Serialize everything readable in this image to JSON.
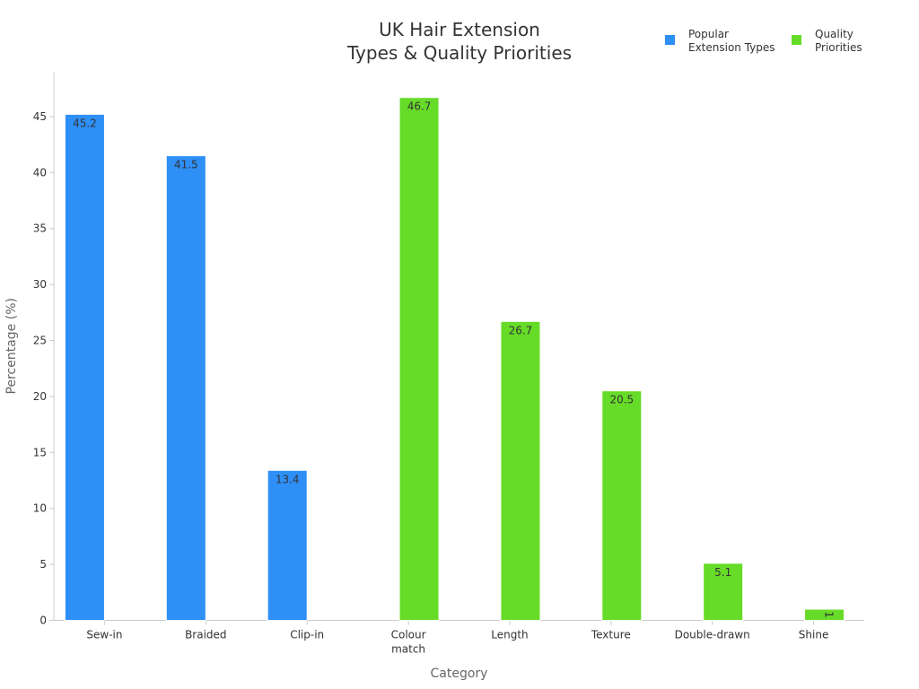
{
  "chart_data": {
    "type": "bar",
    "title": [
      "UK Hair Extension",
      "Types & Quality Priorities"
    ],
    "xlabel": "Category",
    "ylabel": "Percentage (%)",
    "ylim": [
      0,
      49
    ],
    "yticks": [
      0,
      5,
      10,
      15,
      20,
      25,
      30,
      35,
      40,
      45
    ],
    "categories": [
      [
        "Sew-in"
      ],
      [
        "Braided"
      ],
      [
        "Clip-in"
      ],
      [
        "Colour",
        "match"
      ],
      [
        "Length"
      ],
      [
        "Texture"
      ],
      [
        "Double-drawn"
      ],
      [
        "Shine"
      ]
    ],
    "legend_position": "top-right",
    "grid": false,
    "series": [
      {
        "name": [
          "Popular",
          "Extension Types"
        ],
        "color": "#2e8ff7",
        "values": [
          45.2,
          41.5,
          13.4,
          null,
          null,
          null,
          null,
          null
        ],
        "labels": [
          "45.2",
          "41.5",
          "13.4",
          null,
          null,
          null,
          null,
          null
        ]
      },
      {
        "name": [
          "Quality",
          "Priorities"
        ],
        "color": "#66db28",
        "values": [
          null,
          null,
          null,
          46.7,
          26.7,
          20.5,
          5.1,
          1
        ],
        "labels": [
          null,
          null,
          null,
          "46.7",
          "26.7",
          "20.5",
          "5.1",
          "1"
        ]
      }
    ]
  }
}
